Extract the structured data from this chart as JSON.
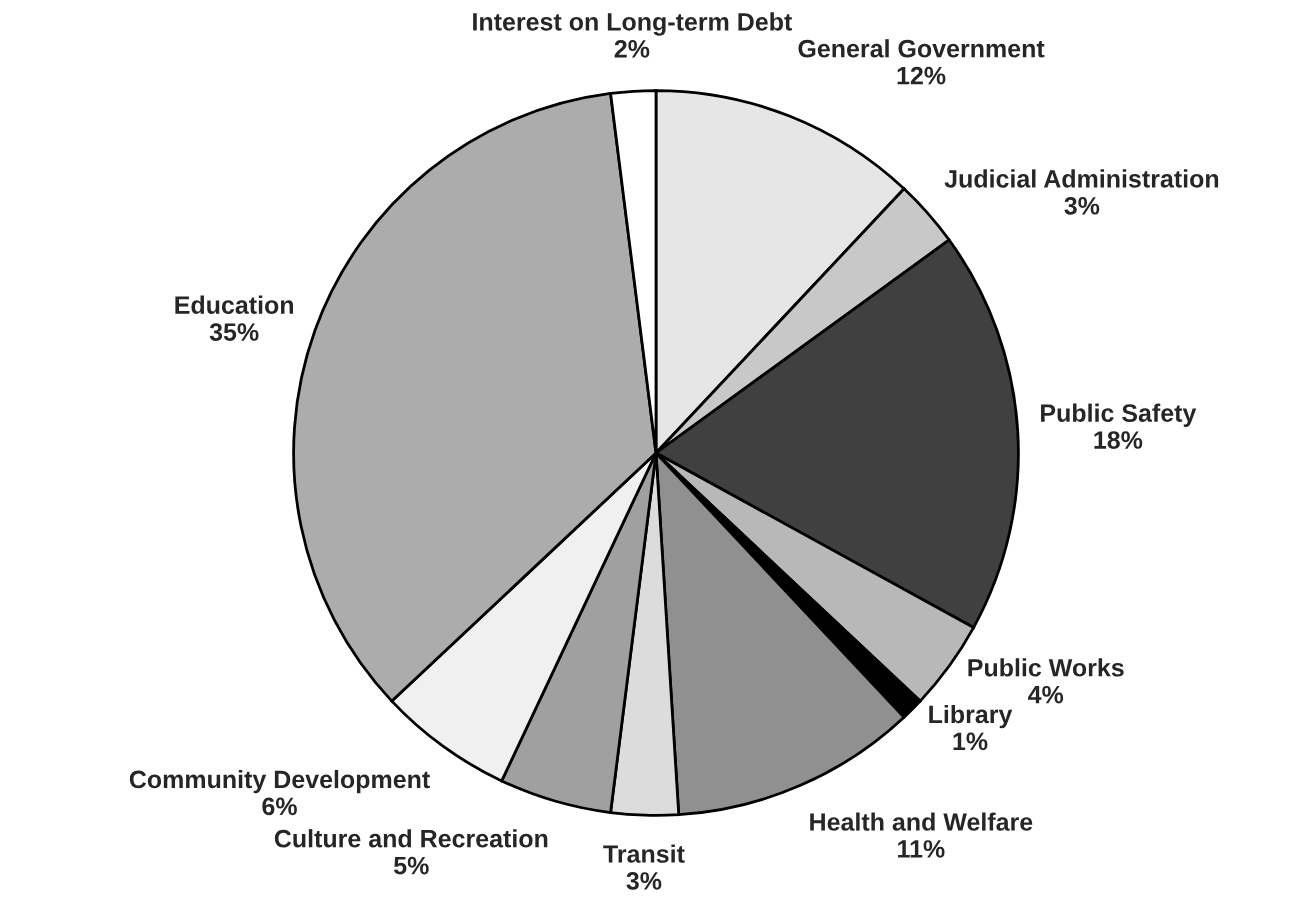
{
  "chart_data": {
    "type": "pie",
    "categories": [
      "General Government",
      "Judicial Administration",
      "Public Safety",
      "Public Works",
      "Library",
      "Health and Welfare",
      "Transit",
      "Culture and Recreation",
      "Community Development",
      "Education",
      "Interest on Long-term Debt"
    ],
    "values": [
      12,
      3,
      18,
      4,
      1,
      11,
      3,
      5,
      6,
      35,
      2
    ],
    "value_labels": [
      "12%",
      "3%",
      "18%",
      "4%",
      "1%",
      "11%",
      "3%",
      "5%",
      "6%",
      "35%",
      "2%"
    ],
    "colors": [
      "#e6e6e6",
      "#c8c8c8",
      "#404040",
      "#b8b8b8",
      "#000000",
      "#909090",
      "#dcdcdc",
      "#a0a0a0",
      "#f0f0f0",
      "#acacac",
      "#ffffff"
    ],
    "legend": false
  }
}
